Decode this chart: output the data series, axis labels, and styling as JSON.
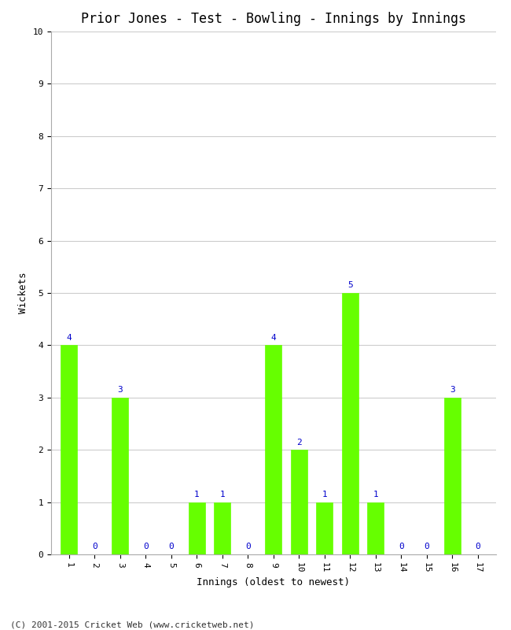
{
  "title": "Prior Jones - Test - Bowling - Innings by Innings",
  "xlabel": "Innings (oldest to newest)",
  "ylabel": "Wickets",
  "categories": [
    1,
    2,
    3,
    4,
    5,
    6,
    7,
    8,
    9,
    10,
    11,
    12,
    13,
    14,
    15,
    16,
    17
  ],
  "values": [
    4,
    0,
    3,
    0,
    0,
    1,
    1,
    0,
    4,
    2,
    1,
    5,
    1,
    0,
    0,
    3,
    0
  ],
  "bar_color": "#66ff00",
  "bar_edge_color": "#66ff00",
  "label_color": "#0000cc",
  "title_fontsize": 12,
  "axis_label_fontsize": 9,
  "tick_fontsize": 8,
  "label_fontsize": 8,
  "ylim": [
    0,
    10
  ],
  "yticks": [
    0,
    1,
    2,
    3,
    4,
    5,
    6,
    7,
    8,
    9,
    10
  ],
  "background_color": "#ffffff",
  "grid_color": "#cccccc",
  "footer": "(C) 2001-2015 Cricket Web (www.cricketweb.net)",
  "footer_color": "#333333",
  "footer_fontsize": 8
}
